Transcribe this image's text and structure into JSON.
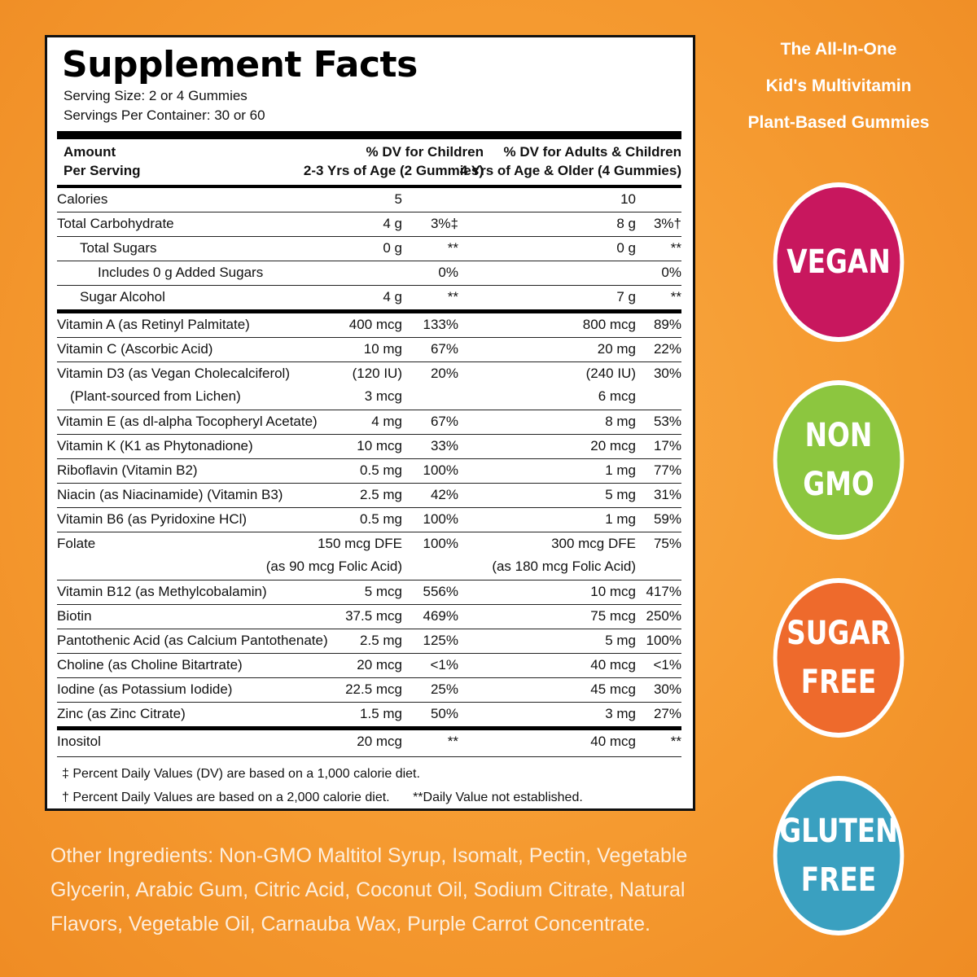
{
  "label": {
    "title": "Supplement Facts",
    "serving_size": "Serving Size: 2 or 4 Gummies",
    "servings_per_container": "Servings Per Container: 30 or 60",
    "header": {
      "amount_line1": "Amount",
      "amount_line2": "Per Serving",
      "children_line1": "% DV for Children",
      "children_line2": "2-3 Yrs of Age (2 Gummies)",
      "adults_line1": "% DV for Adults & Children",
      "adults_line2": "4 Yrs of Age & Older (4 Gummies)"
    },
    "rows": [
      {
        "name": "Calories",
        "a1": "5",
        "p1": "",
        "a2": "10",
        "p2": ""
      },
      {
        "name": "Total Carbohydrate",
        "a1": "4 g",
        "p1": "3%‡",
        "a2": "8 g",
        "p2": "3%†"
      },
      {
        "name": "Total Sugars",
        "a1": "0 g",
        "p1": "**",
        "a2": "0 g",
        "p2": "**"
      },
      {
        "name": "Includes 0 g Added Sugars",
        "a1": "",
        "p1": "0%",
        "a2": "",
        "p2": "0%"
      },
      {
        "name": "Sugar Alcohol",
        "a1": "4 g",
        "p1": "**",
        "a2": "7 g",
        "p2": "**"
      },
      {
        "name": "Vitamin A (as Retinyl Palmitate)",
        "a1": "400 mcg",
        "p1": "133%",
        "a2": "800 mcg",
        "p2": "89%"
      },
      {
        "name": "Vitamin C (Ascorbic Acid)",
        "a1": "10 mg",
        "p1": "67%",
        "a2": "20 mg",
        "p2": "22%"
      },
      {
        "name": "Vitamin D3 (as Vegan Cholecalciferol)",
        "name2": "(Plant-sourced from Lichen)",
        "a1": "(120 IU)",
        "a1b": "3 mcg",
        "p1": "20%",
        "a2": "(240 IU)",
        "a2b": "6 mcg",
        "p2": "30%"
      },
      {
        "name": "Vitamin E (as dl-alpha Tocopheryl Acetate)",
        "a1": "4 mg",
        "p1": "67%",
        "a2": "8 mg",
        "p2": "53%"
      },
      {
        "name": "Vitamin K (K1 as Phytonadione)",
        "a1": "10 mcg",
        "p1": "33%",
        "a2": "20 mcg",
        "p2": "17%"
      },
      {
        "name": "Riboflavin (Vitamin B2)",
        "a1": "0.5 mg",
        "p1": "100%",
        "a2": "1 mg",
        "p2": "77%"
      },
      {
        "name": "Niacin (as Niacinamide) (Vitamin B3)",
        "a1": "2.5 mg",
        "p1": "42%",
        "a2": "5 mg",
        "p2": "31%"
      },
      {
        "name": "Vitamin B6 (as Pyridoxine HCl)",
        "a1": "0.5 mg",
        "p1": "100%",
        "a2": "1 mg",
        "p2": "59%"
      },
      {
        "name": "Folate",
        "a1": "150 mcg DFE",
        "a1b": "(as 90 mcg Folic Acid)",
        "p1": "100%",
        "a2": "300 mcg DFE",
        "a2b": "(as 180 mcg Folic Acid)",
        "p2": "75%"
      },
      {
        "name": "Vitamin B12 (as Methylcobalamin)",
        "a1": "5 mcg",
        "p1": "556%",
        "a2": "10 mcg",
        "p2": "417%"
      },
      {
        "name": "Biotin",
        "a1": "37.5 mcg",
        "p1": "469%",
        "a2": "75 mcg",
        "p2": "250%"
      },
      {
        "name": "Pantothenic Acid (as Calcium Pantothenate)",
        "a1": "2.5 mg",
        "p1": "125%",
        "a2": "5 mg",
        "p2": "100%"
      },
      {
        "name": "Choline (as Choline Bitartrate)",
        "a1": "20 mcg",
        "p1": "<1%",
        "a2": "40 mcg",
        "p2": "<1%"
      },
      {
        "name": "Iodine (as Potassium Iodide)",
        "a1": "22.5 mcg",
        "p1": "25%",
        "a2": "45 mcg",
        "p2": "30%"
      },
      {
        "name": "Zinc (as Zinc Citrate)",
        "a1": "1.5 mg",
        "p1": "50%",
        "a2": "3 mg",
        "p2": "27%"
      },
      {
        "name": "Inositol",
        "a1": "20 mcg",
        "p1": "**",
        "a2": "40 mcg",
        "p2": "**"
      }
    ],
    "footnote1": "‡ Percent Daily Values (DV) are based on a 1,000 calorie diet.",
    "footnote2": "† Percent Daily Values are based on a 2,000 calorie diet.",
    "footnote3": "**Daily Value not established."
  },
  "side": {
    "title_line1": "The All-In-One",
    "title_line2": "Kid's Multivitamin",
    "title_line3": "Plant-Based Gummies",
    "badges": [
      {
        "line1": "VEGAN",
        "line2": "",
        "color": "#c8175e"
      },
      {
        "line1": "NON",
        "line2": "GMO",
        "color": "#8cc63f"
      },
      {
        "line1": "SUGAR",
        "line2": "FREE",
        "color": "#ee6a2c"
      },
      {
        "line1": "GLUTEN",
        "line2": "FREE",
        "color": "#3aa0c0"
      }
    ]
  },
  "other_ingredients": "Other Ingredients: Non-GMO Maltitol Syrup, Isomalt, Pectin, Vegetable Glycerin, Arabic Gum, Citric Acid, Coconut Oil, Sodium Citrate, Natural Flavors, Vegetable Oil, Carnauba Wax, Purple Carrot Concentrate."
}
